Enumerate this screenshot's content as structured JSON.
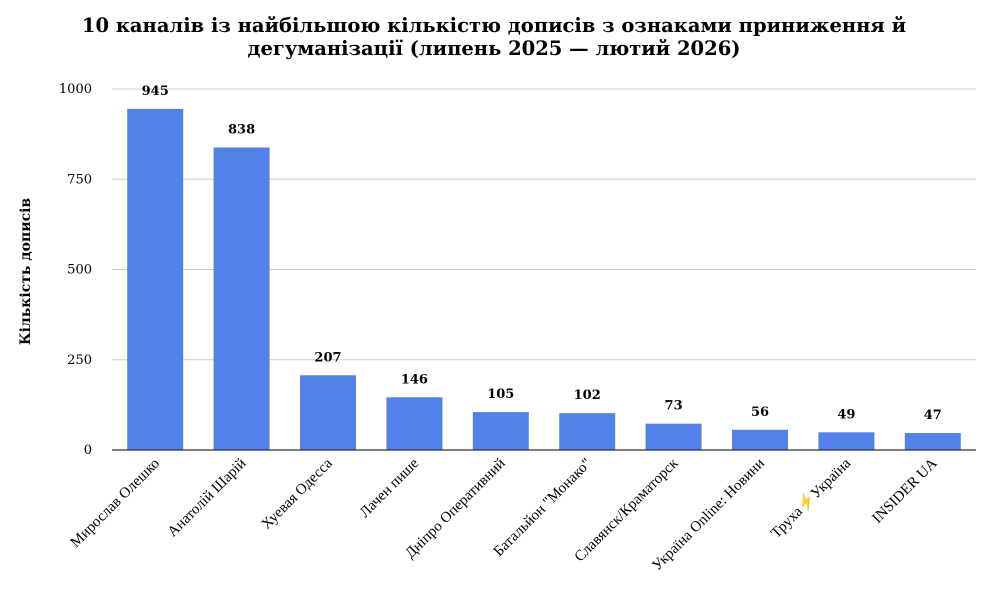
{
  "chart_data": {
    "type": "bar",
    "title": "10 каналів із найбільшою кількістю дописів з ознаками приниження й дегуманізації (липень 2025 — лютий 2026)",
    "title_lines": [
      "10 каналів із найбільшою кількістю дописів з ознаками приниження й",
      "дегуманізації (липень 2025 — лютий 2026)"
    ],
    "xlabel": "",
    "ylabel": "Кількість дописів",
    "ylim": [
      0,
      1000
    ],
    "yticks": [
      0,
      250,
      500,
      750,
      1000
    ],
    "grid": true,
    "legend": "none",
    "bar_color": "#5281ea",
    "grid_color": "#cccccc",
    "categories": [
      "Мирослав Олешко",
      "Анатолій Шарій",
      "Хуевая Одесса",
      "Лачен пише",
      "Дніпро Оперативний",
      "Батальйон \"Монако\"",
      "Славянск/Краматорск",
      "Україна Online: Новини",
      "Труха⚡Україна",
      "INSIDER UA"
    ],
    "values": [
      945,
      838,
      207,
      146,
      105,
      102,
      73,
      56,
      49,
      47
    ]
  }
}
